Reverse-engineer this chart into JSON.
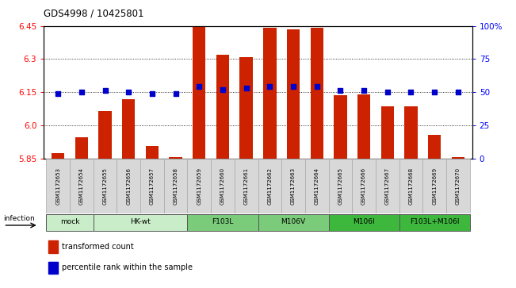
{
  "title": "GDS4998 / 10425801",
  "samples": [
    "GSM1172653",
    "GSM1172654",
    "GSM1172655",
    "GSM1172656",
    "GSM1172657",
    "GSM1172658",
    "GSM1172659",
    "GSM1172660",
    "GSM1172661",
    "GSM1172662",
    "GSM1172663",
    "GSM1172664",
    "GSM1172665",
    "GSM1172666",
    "GSM1172667",
    "GSM1172668",
    "GSM1172669",
    "GSM1172670"
  ],
  "transformed_counts": [
    5.875,
    5.945,
    6.065,
    6.12,
    5.905,
    5.855,
    6.445,
    6.32,
    6.31,
    6.44,
    6.435,
    6.44,
    6.135,
    6.14,
    6.085,
    6.085,
    5.955,
    5.855
  ],
  "percentile_ranks": [
    49,
    50,
    51,
    50,
    49,
    49,
    54,
    52,
    53,
    54,
    54,
    54,
    51,
    51,
    50,
    50,
    50,
    50
  ],
  "groups_def": [
    {
      "name": "mock",
      "cols": [
        0,
        1
      ],
      "color": "#c8edc8"
    },
    {
      "name": "HK-wt",
      "cols": [
        2,
        3,
        4,
        5
      ],
      "color": "#c8edc8"
    },
    {
      "name": "F103L",
      "cols": [
        6,
        7,
        8
      ],
      "color": "#7acc7a"
    },
    {
      "name": "M106V",
      "cols": [
        9,
        10,
        11
      ],
      "color": "#7acc7a"
    },
    {
      "name": "M106I",
      "cols": [
        12,
        13,
        14
      ],
      "color": "#3db83d"
    },
    {
      "name": "F103L+M106I",
      "cols": [
        15,
        16,
        17
      ],
      "color": "#3db83d"
    }
  ],
  "ylim_left": [
    5.85,
    6.45
  ],
  "ylim_right": [
    0,
    100
  ],
  "yticks_left": [
    5.85,
    6.0,
    6.15,
    6.3,
    6.45
  ],
  "yticks_right": [
    0,
    25,
    50,
    75,
    100
  ],
  "bar_color": "#cc2200",
  "dot_color": "#0000cc",
  "bar_bottom": 5.85,
  "legend_items": [
    {
      "label": "transformed count",
      "color": "#cc2200"
    },
    {
      "label": "percentile rank within the sample",
      "color": "#0000cc"
    }
  ]
}
